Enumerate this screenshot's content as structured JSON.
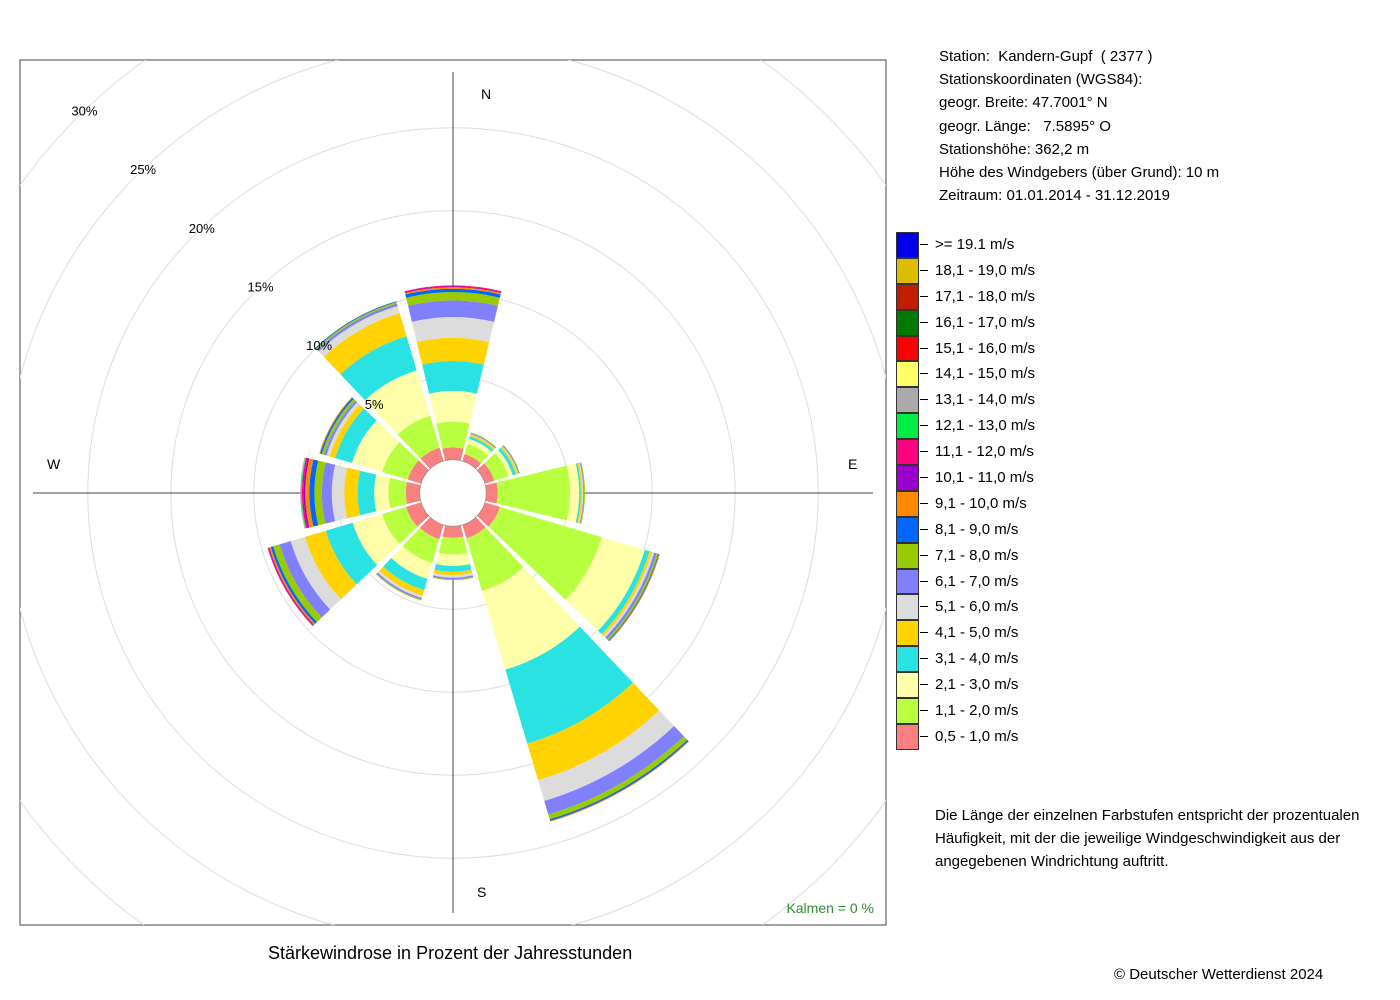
{
  "station_info": [
    "Station:  Kandern-Gupf  ( 2377 )",
    "Stationskoordinaten (WGS84):",
    "geogr. Breite: 47.7001° N",
    "geogr. Länge:   7.5895° O",
    "Stationshöhe: 362,2 m",
    "Höhe des Windgebers (über Grund): 10 m",
    "Zeitraum: 01.01.2014 - 31.12.2019"
  ],
  "legend": [
    {
      "label": ">= 19.1 m/s",
      "color": "#0000ee"
    },
    {
      "label": "18,1 - 19,0 m/s",
      "color": "#e0bc00"
    },
    {
      "label": "17,1 - 18,0 m/s",
      "color": "#c01e00"
    },
    {
      "label": "16,1 - 17,0 m/s",
      "color": "#007a00"
    },
    {
      "label": "15,1 - 16,0 m/s",
      "color": "#ff0000"
    },
    {
      "label": "14,1 - 15,0 m/s",
      "color": "#ffff66"
    },
    {
      "label": "13,1 - 14,0 m/s",
      "color": "#aaaaaa"
    },
    {
      "label": "12,1 - 13,0 m/s",
      "color": "#00ee44"
    },
    {
      "label": "11,1 - 12,0 m/s",
      "color": "#ff0080"
    },
    {
      "label": "10,1 - 11,0 m/s",
      "color": "#9900cc"
    },
    {
      "label": "9,1 - 10,0 m/s",
      "color": "#ff8800"
    },
    {
      "label": "8,1 - 9,0 m/s",
      "color": "#0066ff"
    },
    {
      "label": "7,1 - 8,0 m/s",
      "color": "#99cc00"
    },
    {
      "label": "6,1 - 7,0 m/s",
      "color": "#8080ff"
    },
    {
      "label": "5,1 - 6,0 m/s",
      "color": "#dcdcdc"
    },
    {
      "label": "4,1 - 5,0 m/s",
      "color": "#ffd200"
    },
    {
      "label": "3,1 - 4,0 m/s",
      "color": "#2ae2e2"
    },
    {
      "label": "2,1 - 3,0 m/s",
      "color": "#ffffaa"
    },
    {
      "label": "1,1 - 2,0 m/s",
      "color": "#b8ff40"
    },
    {
      "label": "0,5 - 1,0 m/s",
      "color": "#f88080"
    }
  ],
  "note": "Die Länge der einzelnen Farbstufen entspricht der prozentualen Häufigkeit, mit der die jeweilige Windgeschwindigkeit aus der angegebenen Windrichtung auftritt.",
  "caption": "Stärkewindrose in Prozent der Jahresstunden",
  "copyright": "© Deutscher Wetterdienst  2024",
  "calm": "Kalmen  =  0 %",
  "chart_data": {
    "type": "wind-rose",
    "title": "Stärkewindrose in Prozent der Jahresstunden",
    "directions": [
      "N",
      "E",
      "S",
      "W"
    ],
    "sector_width_deg": 30,
    "radial_unit": "%",
    "rings": [
      5,
      10,
      15,
      20,
      25,
      30
    ],
    "ring_labels": [
      "5%",
      "10%",
      "15%",
      "20%",
      "25%",
      "30%"
    ],
    "inner_offset": 2.0,
    "calm_percent": 0,
    "speed_classes": [
      "0,5 - 1,0 m/s",
      "1,1 - 2,0 m/s",
      "2,1 - 3,0 m/s",
      "3,1 - 4,0 m/s",
      "4,1 - 5,0 m/s",
      "5,1 - 6,0 m/s",
      "6,1 - 7,0 m/s",
      "7,1 - 8,0 m/s",
      "8,1 - 9,0 m/s",
      "9,1 - 10,0 m/s",
      "10,1 - 11,0 m/s",
      "11,1 - 12,0 m/s",
      "12,1 - 13,0 m/s",
      "13,1 - 14,0 m/s",
      "14,1 - 15,0 m/s",
      "15,1 - 16,0 m/s",
      "16,1 - 17,0 m/s",
      "17,1 - 18,0 m/s",
      "18,1 - 19,0 m/s",
      ">= 19.1 m/s"
    ],
    "sectors": [
      {
        "direction_deg": 0,
        "values": [
          0.75,
          1.55,
          1.85,
          1.8,
          1.4,
          1.25,
          1.0,
          0.5,
          0.2,
          0.1,
          0.05,
          0.05,
          0.0,
          0.0,
          0.0,
          0.0,
          0.0,
          0.0,
          0.0,
          0.0
        ]
      },
      {
        "direction_deg": 30,
        "values": [
          0.45,
          0.65,
          0.3,
          0.15,
          0.1,
          0.05,
          0.05,
          0.05,
          0.0,
          0.0,
          0.0,
          0.0,
          0.0,
          0.0,
          0.0,
          0.0,
          0.0,
          0.0,
          0.0,
          0.0
        ]
      },
      {
        "direction_deg": 60,
        "values": [
          0.6,
          0.9,
          0.25,
          0.2,
          0.1,
          0.05,
          0.05,
          0.05,
          0.0,
          0.0,
          0.0,
          0.0,
          0.0,
          0.0,
          0.0,
          0.0,
          0.0,
          0.0,
          0.0,
          0.0
        ]
      },
      {
        "direction_deg": 90,
        "values": [
          0.7,
          4.35,
          0.55,
          0.1,
          0.1,
          0.05,
          0.05,
          0.05,
          0.0,
          0.0,
          0.0,
          0.0,
          0.0,
          0.0,
          0.0,
          0.0,
          0.0,
          0.0,
          0.0,
          0.0
        ]
      },
      {
        "direction_deg": 120,
        "values": [
          0.95,
          6.4,
          2.7,
          0.3,
          0.15,
          0.15,
          0.15,
          0.1,
          0.05,
          0.05,
          0.0,
          0.0,
          0.0,
          0.0,
          0.0,
          0.0,
          0.0,
          0.0,
          0.0,
          0.0
        ]
      },
      {
        "direction_deg": 150,
        "values": [
          0.85,
          3.3,
          4.95,
          4.65,
          2.3,
          1.3,
          0.85,
          0.3,
          0.1,
          0.05,
          0.0,
          0.0,
          0.0,
          0.0,
          0.0,
          0.0,
          0.0,
          0.0,
          0.0,
          0.0
        ]
      },
      {
        "direction_deg": 180,
        "values": [
          0.7,
          1.0,
          0.7,
          0.35,
          0.2,
          0.15,
          0.1,
          0.05,
          0.0,
          0.0,
          0.0,
          0.0,
          0.0,
          0.0,
          0.0,
          0.0,
          0.0,
          0.0,
          0.0,
          0.0
        ]
      },
      {
        "direction_deg": 210,
        "values": [
          0.9,
          1.5,
          1.0,
          0.7,
          0.35,
          0.15,
          0.1,
          0.05,
          0.0,
          0.0,
          0.0,
          0.0,
          0.0,
          0.0,
          0.0,
          0.0,
          0.0,
          0.0,
          0.0,
          0.0
        ]
      },
      {
        "direction_deg": 240,
        "values": [
          0.95,
          1.5,
          1.85,
          1.7,
          1.3,
          0.9,
          0.7,
          0.4,
          0.15,
          0.1,
          0.05,
          0.05,
          0.0,
          0.0,
          0.0,
          0.0,
          0.0,
          0.0,
          0.0,
          0.0
        ]
      },
      {
        "direction_deg": 270,
        "values": [
          0.85,
          1.05,
          0.85,
          1.0,
          0.8,
          0.75,
          0.6,
          0.45,
          0.3,
          0.25,
          0.1,
          0.1,
          0.05,
          0.05,
          0.0,
          0.0,
          0.0,
          0.0,
          0.0,
          0.0
        ]
      },
      {
        "direction_deg": 300,
        "values": [
          0.85,
          1.6,
          1.9,
          1.05,
          0.35,
          0.2,
          0.15,
          0.15,
          0.1,
          0.05,
          0.0,
          0.0,
          0.0,
          0.0,
          0.0,
          0.0,
          0.0,
          0.0,
          0.0,
          0.0
        ]
      },
      {
        "direction_deg": 330,
        "values": [
          0.85,
          2.0,
          2.85,
          2.15,
          1.45,
          0.45,
          0.15,
          0.1,
          0.05,
          0.0,
          0.0,
          0.0,
          0.0,
          0.0,
          0.0,
          0.0,
          0.0,
          0.0,
          0.0,
          0.0
        ]
      }
    ]
  }
}
